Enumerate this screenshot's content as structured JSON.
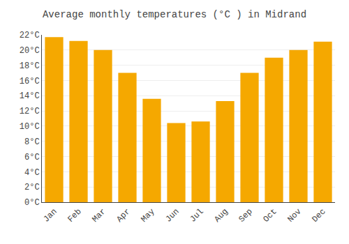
{
  "chart_data": {
    "type": "bar",
    "title": "Average monthly temperatures (°C ) in Midrand",
    "categories": [
      "Jan",
      "Feb",
      "Mar",
      "Apr",
      "May",
      "Jun",
      "Jul",
      "Aug",
      "Sep",
      "Oct",
      "Nov",
      "Dec"
    ],
    "values": [
      21.7,
      21.2,
      20.0,
      17.0,
      13.6,
      10.4,
      10.6,
      13.3,
      17.0,
      19.0,
      20.0,
      21.1
    ],
    "color": "#F5A800",
    "ylim": [
      0,
      22
    ],
    "yticks": [
      {
        "value": 0,
        "label": "0°C"
      },
      {
        "value": 2,
        "label": "2°C"
      },
      {
        "value": 4,
        "label": "4°C"
      },
      {
        "value": 6,
        "label": "6°C"
      },
      {
        "value": 8,
        "label": "8°C"
      },
      {
        "value": 10,
        "label": "10°C"
      },
      {
        "value": 12,
        "label": "12°C"
      },
      {
        "value": 14,
        "label": "14°C"
      },
      {
        "value": 16,
        "label": "16°C"
      },
      {
        "value": 18,
        "label": "18°C"
      },
      {
        "value": 20,
        "label": "20°C"
      },
      {
        "value": 22,
        "label": "22°C"
      }
    ],
    "grid": true
  }
}
